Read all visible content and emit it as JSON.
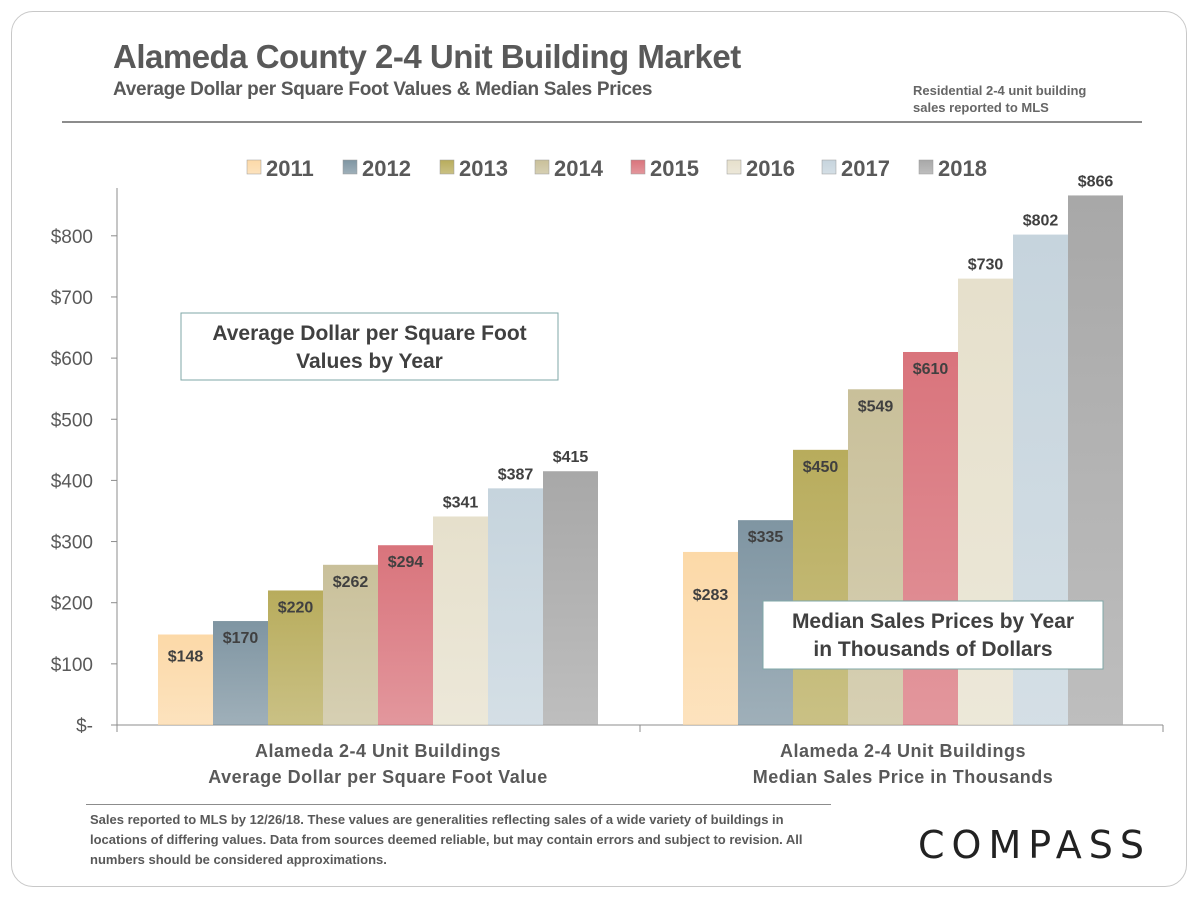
{
  "title": "Alameda County 2-4 Unit Building Market",
  "subtitle": "Average Dollar per Square Foot Values & Median Sales Prices",
  "note_top": "Residential 2-4 unit building\nsales reported to MLS",
  "footnote": "Sales reported to MLS by 12/26/18. These values are generalities reflecting sales of a wide variety of buildings in locations of differing values. Data from sources deemed reliable, but may contain errors and subject to revision. All numbers  should be considered approximations.",
  "logo": "COMPASS",
  "chart_data": {
    "type": "bar",
    "categories": [
      "Alameda 2-4 Unit Buildings\nAverage Dollar per Square Foot Value",
      "Alameda 2-4 Unit Buildings\nMedian Sales Price in Thousands"
    ],
    "series": [
      {
        "name": "2011",
        "values": [
          148,
          283
        ],
        "color": "#fcd9a8",
        "labels": [
          "$148",
          "$283"
        ]
      },
      {
        "name": "2012",
        "values": [
          170,
          335
        ],
        "color": "#7f95a2",
        "labels": [
          "$170",
          "$335"
        ]
      },
      {
        "name": "2013",
        "values": [
          220,
          450
        ],
        "color": "#b8ac5c",
        "labels": [
          "$220",
          "$450"
        ]
      },
      {
        "name": "2014",
        "values": [
          262,
          549
        ],
        "color": "#c9c09a",
        "labels": [
          "$262",
          "$549"
        ]
      },
      {
        "name": "2015",
        "values": [
          294,
          610
        ],
        "color": "#d9747c",
        "labels": [
          "$294",
          "$610"
        ]
      },
      {
        "name": "2016",
        "values": [
          341,
          730
        ],
        "color": "#e6e0cc",
        "labels": [
          "$341",
          "$730"
        ]
      },
      {
        "name": "2017",
        "values": [
          387,
          802
        ],
        "color": "#c6d4dd",
        "labels": [
          "$387",
          "$802"
        ]
      },
      {
        "name": "2018",
        "values": [
          415,
          866
        ],
        "color": "#a8a8a8",
        "labels": [
          "$415",
          "$866"
        ]
      }
    ],
    "yticks": [
      {
        "value": 0,
        "label": "$-"
      },
      {
        "value": 100,
        "label": "$100"
      },
      {
        "value": 200,
        "label": "$200"
      },
      {
        "value": 300,
        "label": "$300"
      },
      {
        "value": 400,
        "label": "$400"
      },
      {
        "value": 500,
        "label": "$500"
      },
      {
        "value": 600,
        "label": "$600"
      },
      {
        "value": 700,
        "label": "$700"
      },
      {
        "value": 800,
        "label": "$800"
      }
    ],
    "ylim": [
      0,
      870
    ],
    "legend_position": "top",
    "grid": false,
    "annotations": [
      "Average Dollar per Square Foot\nValues by Year",
      "Median Sales Prices by Year\nin Thousands of Dollars"
    ]
  }
}
